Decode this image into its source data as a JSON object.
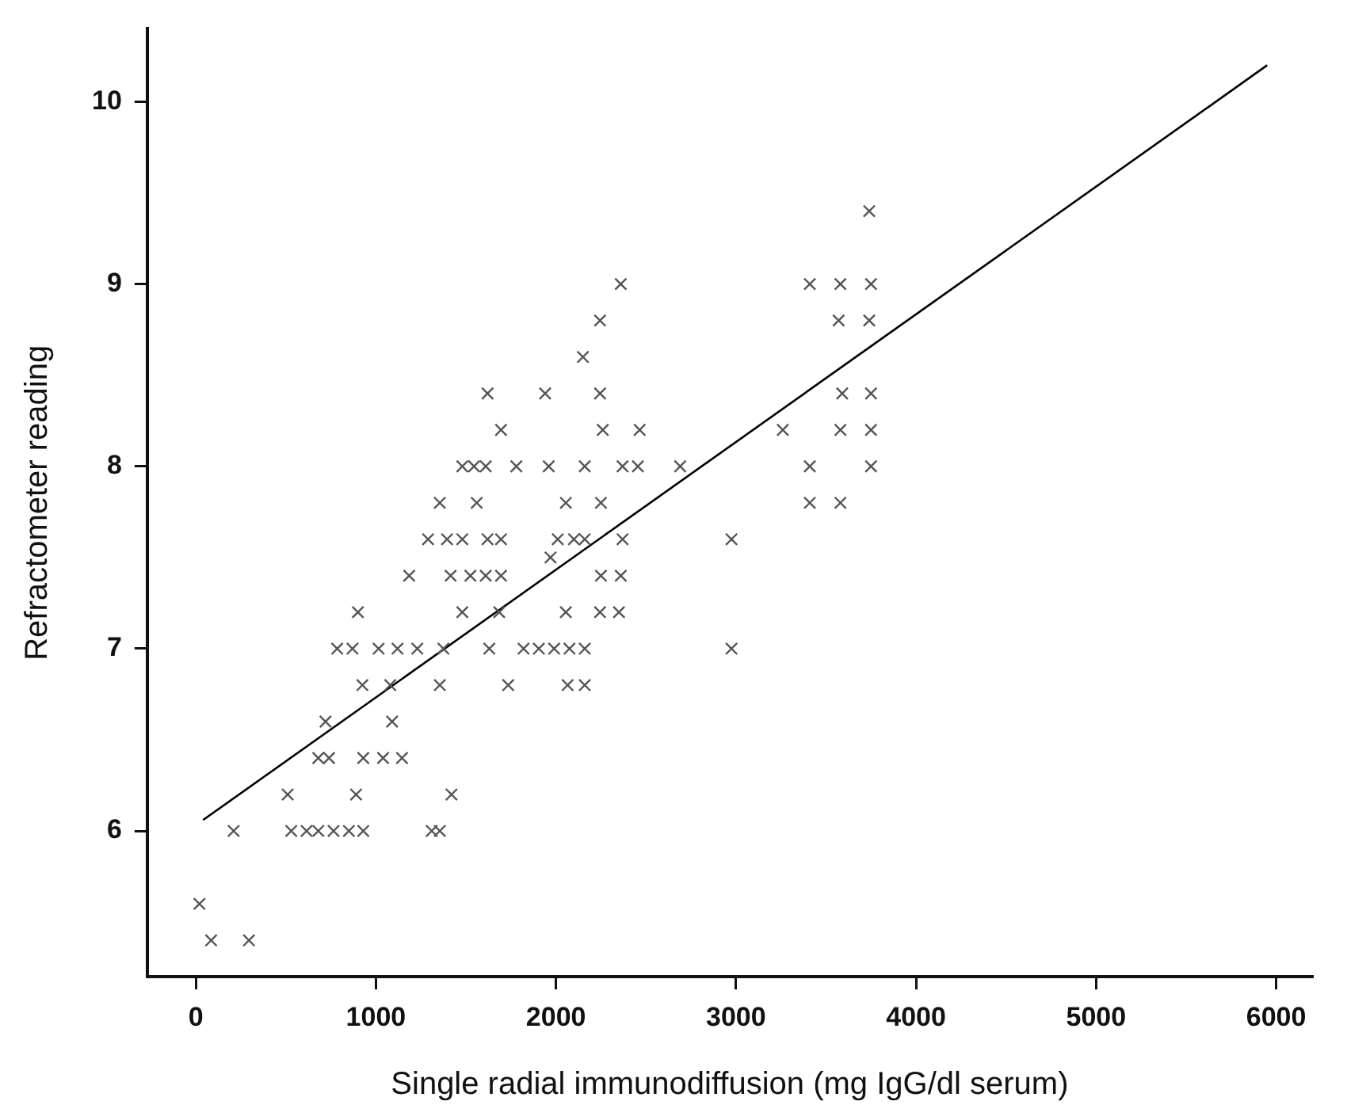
{
  "chart_data": {
    "type": "scatter",
    "xlabel": "Single radial immunodiffusion (mg IgG/dl serum)",
    "ylabel": "Refractometer reading",
    "xlim": [
      -270,
      6200
    ],
    "xticks": [
      0,
      1000,
      2000,
      3000,
      4000,
      5000,
      6000
    ],
    "ylim": [
      5.2,
      10.4
    ],
    "yticks": [
      6,
      7,
      8,
      9,
      10
    ],
    "grid": false,
    "legend": false,
    "marker": "cross",
    "series": [
      {
        "color": "#555555",
        "x": [
          3740,
          2360,
          3410,
          3580,
          3750,
          2245,
          3570,
          3740,
          2150,
          1620,
          1940,
          2245,
          3590,
          3750,
          1695,
          2260,
          2465,
          3260,
          3580,
          3750,
          1480,
          1545,
          1610,
          1780,
          1960,
          2160,
          2370,
          2455,
          2690,
          3410,
          3750,
          1355,
          1560,
          2055,
          2250,
          3410,
          3580,
          1290,
          1395,
          1480,
          1620,
          1695,
          2010,
          2100,
          2160,
          2370,
          2975,
          1970,
          1185,
          1415,
          1525,
          1610,
          1695,
          2250,
          2360,
          900,
          1480,
          1685,
          2055,
          2245,
          2350,
          785,
          870,
          1015,
          1120,
          1230,
          1375,
          1630,
          1820,
          1905,
          1990,
          2075,
          2160,
          2975,
          925,
          1080,
          1355,
          1735,
          2065,
          2160,
          720,
          1090,
          680,
          740,
          930,
          1040,
          1145,
          510,
          890,
          1420,
          210,
          530,
          615,
          680,
          765,
          850,
          930,
          1310,
          1355,
          20,
          85,
          295
        ],
        "values": [
          9.4,
          9.0,
          9.0,
          9.0,
          9.0,
          8.8,
          8.8,
          8.8,
          8.6,
          8.4,
          8.4,
          8.4,
          8.4,
          8.4,
          8.2,
          8.2,
          8.2,
          8.2,
          8.2,
          8.2,
          8.0,
          8.0,
          8.0,
          8.0,
          8.0,
          8.0,
          8.0,
          8.0,
          8.0,
          8.0,
          8.0,
          7.8,
          7.8,
          7.8,
          7.8,
          7.8,
          7.8,
          7.6,
          7.6,
          7.6,
          7.6,
          7.6,
          7.6,
          7.6,
          7.6,
          7.6,
          7.6,
          7.5,
          7.4,
          7.4,
          7.4,
          7.4,
          7.4,
          7.4,
          7.4,
          7.2,
          7.2,
          7.2,
          7.2,
          7.2,
          7.2,
          7.0,
          7.0,
          7.0,
          7.0,
          7.0,
          7.0,
          7.0,
          7.0,
          7.0,
          7.0,
          7.0,
          7.0,
          7.0,
          6.8,
          6.8,
          6.8,
          6.8,
          6.8,
          6.8,
          6.6,
          6.6,
          6.4,
          6.4,
          6.4,
          6.4,
          6.4,
          6.2,
          6.2,
          6.2,
          6.0,
          6.0,
          6.0,
          6.0,
          6.0,
          6.0,
          6.0,
          6.0,
          6.0,
          5.6,
          5.4,
          5.4
        ]
      },
      {
        "type": "line",
        "color": "#000000",
        "marker": "none",
        "x": [
          40,
          5950
        ],
        "values": [
          6.06,
          10.2
        ]
      }
    ]
  }
}
